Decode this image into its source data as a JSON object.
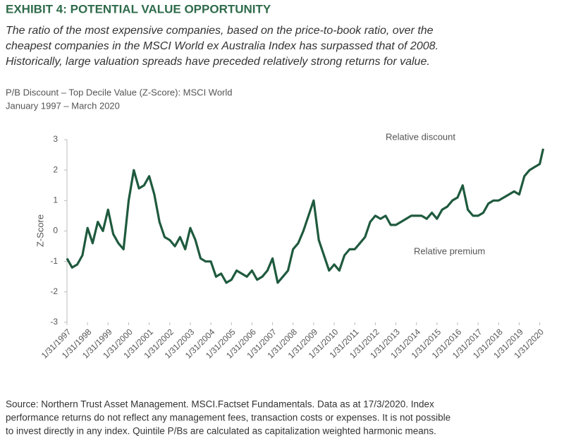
{
  "header": {
    "title": "EXHIBIT 4: POTENTIAL VALUE OPPORTUNITY",
    "subtitle": [
      "The ratio of the most expensive companies, based on the price-to-book ratio, over the",
      "cheapest companies in the MSCI World ex Australia Index has surpassed that of 2008.",
      "Historically, large valuation spreads have preceded relatively strong returns for value."
    ]
  },
  "chart_data": {
    "type": "line",
    "title": [
      "P/B Discount – Top Decile Value (Z-Score): MSCI World",
      "January 1997  – March 2020"
    ],
    "y_label": "Z-Score",
    "annotations": [
      "Relative discount",
      "Relative premium"
    ],
    "x": [
      "1997-01",
      "1997-04",
      "1997-07",
      "1997-10",
      "1998-01",
      "1998-04",
      "1998-07",
      "1998-10",
      "1999-01",
      "1999-04",
      "1999-07",
      "1999-10",
      "2000-01",
      "2000-04",
      "2000-07",
      "2000-10",
      "2001-01",
      "2001-04",
      "2001-07",
      "2001-10",
      "2002-01",
      "2002-04",
      "2002-07",
      "2002-10",
      "2003-01",
      "2003-04",
      "2003-07",
      "2003-10",
      "2004-01",
      "2004-04",
      "2004-07",
      "2004-10",
      "2005-01",
      "2005-04",
      "2005-07",
      "2005-10",
      "2006-01",
      "2006-04",
      "2006-07",
      "2006-10",
      "2007-01",
      "2007-04",
      "2007-07",
      "2007-10",
      "2008-01",
      "2008-04",
      "2008-07",
      "2008-10",
      "2009-01",
      "2009-04",
      "2009-07",
      "2009-10",
      "2010-01",
      "2010-04",
      "2010-07",
      "2010-10",
      "2011-01",
      "2011-04",
      "2011-07",
      "2011-10",
      "2012-01",
      "2012-04",
      "2012-07",
      "2012-10",
      "2013-01",
      "2013-04",
      "2013-07",
      "2013-10",
      "2014-01",
      "2014-04",
      "2014-07",
      "2014-10",
      "2015-01",
      "2015-04",
      "2015-07",
      "2015-10",
      "2016-01",
      "2016-04",
      "2016-07",
      "2016-10",
      "2017-01",
      "2017-04",
      "2017-07",
      "2017-10",
      "2018-01",
      "2018-04",
      "2018-07",
      "2018-10",
      "2019-01",
      "2019-04",
      "2019-07",
      "2019-10",
      "2020-01",
      "2020-03"
    ],
    "series": [
      {
        "color": "#1f5a3e",
        "values": [
          -0.9,
          -1.2,
          -1.1,
          -0.8,
          0.1,
          -0.4,
          0.3,
          0.0,
          0.7,
          -0.1,
          -0.4,
          -0.6,
          1.0,
          2.0,
          1.4,
          1.5,
          1.8,
          1.2,
          0.3,
          -0.2,
          -0.3,
          -0.5,
          -0.2,
          -0.6,
          0.1,
          -0.3,
          -0.9,
          -1.0,
          -1.0,
          -1.5,
          -1.4,
          -1.7,
          -1.6,
          -1.3,
          -1.4,
          -1.5,
          -1.3,
          -1.6,
          -1.5,
          -1.3,
          -0.9,
          -1.7,
          -1.5,
          -1.3,
          -0.6,
          -0.4,
          0.0,
          0.5,
          1.0,
          -0.3,
          -0.8,
          -1.3,
          -1.1,
          -1.3,
          -0.8,
          -0.6,
          -0.6,
          -0.4,
          -0.2,
          0.3,
          0.5,
          0.4,
          0.5,
          0.2,
          0.2,
          0.3,
          0.4,
          0.5,
          0.5,
          0.5,
          0.4,
          0.6,
          0.4,
          0.7,
          0.8,
          1.0,
          1.1,
          1.5,
          0.7,
          0.5,
          0.5,
          0.6,
          0.9,
          1.0,
          1.0,
          1.1,
          1.2,
          1.3,
          1.2,
          1.8,
          2.0,
          2.1,
          2.2,
          2.7
        ]
      }
    ],
    "xlim": [
      "1997-01",
      "2020-03"
    ],
    "xticks": [
      {
        "value": "1997-01",
        "label": "1/31/1997"
      },
      {
        "value": "1998-01",
        "label": "1/31/1998"
      },
      {
        "value": "1999-01",
        "label": "1/31/1999"
      },
      {
        "value": "2000-01",
        "label": "1/31/2000"
      },
      {
        "value": "2001-01",
        "label": "1/31/2001"
      },
      {
        "value": "2002-01",
        "label": "1/31/2002"
      },
      {
        "value": "2003-01",
        "label": "1/31/2003"
      },
      {
        "value": "2004-01",
        "label": "1/31/2004"
      },
      {
        "value": "2005-01",
        "label": "1/31/2005"
      },
      {
        "value": "2006-01",
        "label": "1/31/2006"
      },
      {
        "value": "2007-01",
        "label": "1/31/2007"
      },
      {
        "value": "2008-01",
        "label": "1/31/2008"
      },
      {
        "value": "2009-01",
        "label": "1/31/2009"
      },
      {
        "value": "2010-01",
        "label": "1/31/2010"
      },
      {
        "value": "2011-01",
        "label": "1/31/2011"
      },
      {
        "value": "2012-01",
        "label": "1/31/2012"
      },
      {
        "value": "2013-01",
        "label": "1/31/2013"
      },
      {
        "value": "2014-01",
        "label": "1/31/2014"
      },
      {
        "value": "2015-01",
        "label": "1/31/2015"
      },
      {
        "value": "2016-01",
        "label": "1/31/2016"
      },
      {
        "value": "2017-01",
        "label": "1/31/2017"
      },
      {
        "value": "2018-01",
        "label": "1/31/2018"
      },
      {
        "value": "2019-01",
        "label": "1/31/2019"
      },
      {
        "value": "2020-01",
        "label": "1/31/2020"
      }
    ],
    "ylim": [
      -3,
      3
    ],
    "yticks": [
      -3,
      -2,
      -1,
      0,
      1,
      2,
      3
    ]
  },
  "footer": {
    "source": [
      "Source: Northern Trust Asset Management. MSCI.Factset Fundamentals.  Data as at 17/3/2020.  Index",
      "performance returns do not reflect any management fees, transaction costs or expenses. It is not possible",
      "to invest directly in any index. Quintile P/Bs are  calculated as capitalization weighted harmonic means."
    ]
  }
}
